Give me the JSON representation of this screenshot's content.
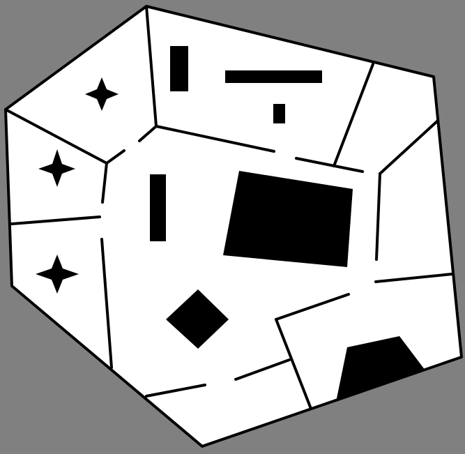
{
  "map": {
    "background_color": "#808080",
    "floor_color": "#ffffff",
    "wall_color": "#000000",
    "rooms": [
      "room-top-left",
      "room-left-middle",
      "room-left-bottom",
      "room-top-center",
      "room-top-right",
      "room-right",
      "room-central-hall",
      "room-bottom-right",
      "room-bottom-center"
    ],
    "obstacles": [
      {
        "name": "star-obstacle-top-left",
        "shape": "four-point-star"
      },
      {
        "name": "star-obstacle-left-middle",
        "shape": "four-point-star"
      },
      {
        "name": "star-obstacle-left-bottom",
        "shape": "four-point-star"
      },
      {
        "name": "vertical-bar-obstacle-top",
        "shape": "rectangle"
      },
      {
        "name": "horizontal-bar-obstacle",
        "shape": "rectangle"
      },
      {
        "name": "small-block-obstacle",
        "shape": "rectangle"
      },
      {
        "name": "vertical-bar-obstacle-center",
        "shape": "rectangle"
      },
      {
        "name": "large-block-obstacle",
        "shape": "quadrilateral"
      },
      {
        "name": "diamond-obstacle",
        "shape": "diamond"
      },
      {
        "name": "trapezoid-obstacle",
        "shape": "trapezoid"
      }
    ]
  }
}
